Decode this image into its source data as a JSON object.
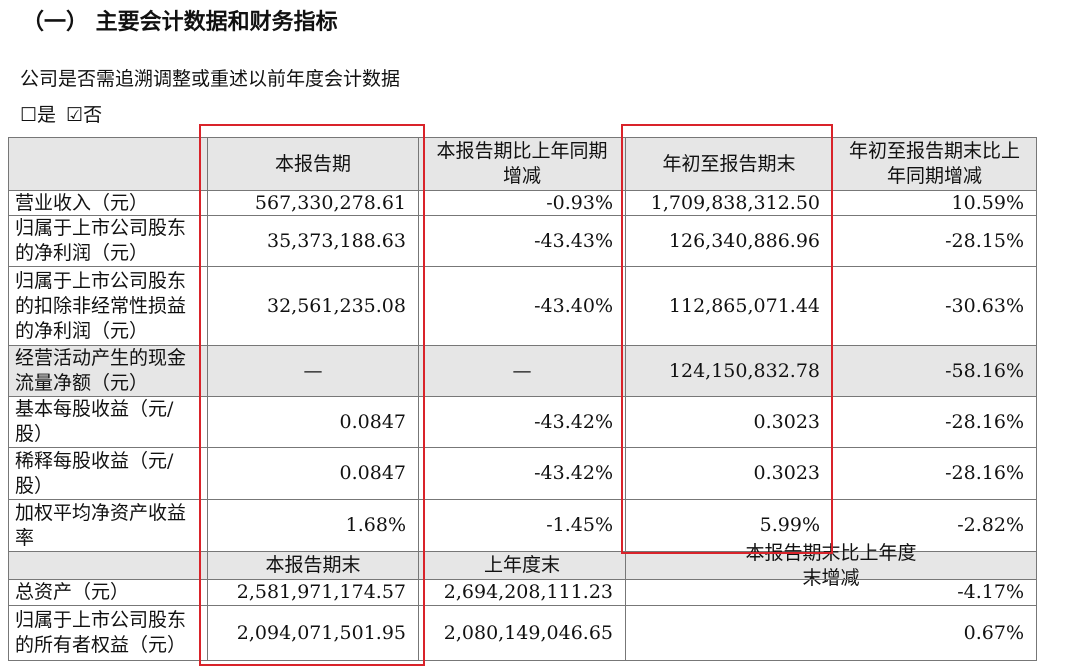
{
  "heading": "（一）  主要会计数据和财务指标",
  "question": "公司是否需追溯调整或重述以前年度会计数据",
  "options": [
    "☐是",
    "☑否"
  ],
  "table": {
    "header": [
      "本报告期",
      "本报告期比上年同期增减",
      "年初至报告期末",
      "年初至报告期末比上年同期增减"
    ],
    "rows": [
      {
        "label": "营业收入（元）",
        "values": [
          "567,330,278.61",
          "-0.93%",
          "1,709,838,312.50",
          "10.59%"
        ]
      },
      {
        "label": "归属于上市公司股东的净利润（元）",
        "values": [
          "35,373,188.63",
          "-43.43%",
          "126,340,886.96",
          "-28.15%"
        ]
      },
      {
        "label": "归属于上市公司股东的扣除非经常性损益的净利润（元）",
        "values": [
          "32,561,235.08",
          "-43.40%",
          "112,865,071.44",
          "-30.63%"
        ]
      },
      {
        "label": "经营活动产生的现金流量净额（元）",
        "values": [
          "—",
          "—",
          "124,150,832.78",
          "-58.16%"
        ]
      },
      {
        "label": "基本每股收益（元/股）",
        "values": [
          "0.0847",
          "-43.42%",
          "0.3023",
          "-28.16%"
        ]
      },
      {
        "label": "稀释每股收益（元/股）",
        "values": [
          "0.0847",
          "-43.42%",
          "0.3023",
          "-28.16%"
        ]
      },
      {
        "label": "加权平均净资产收益率",
        "values": [
          "1.68%",
          "-1.45%",
          "5.99%",
          "-2.82%"
        ]
      }
    ],
    "sub_header": [
      "本报告期末",
      "上年度末",
      "本报告期末比上年度末增减"
    ],
    "sub_rows": [
      {
        "label": "总资产（元）",
        "values": [
          "2,581,971,174.57",
          "2,694,208,111.23",
          "-4.17%"
        ]
      },
      {
        "label": "归属于上市公司股东的所有者权益（元）",
        "values": [
          "2,094,071,501.95",
          "2,080,149,046.65",
          "0.67%"
        ]
      }
    ]
  }
}
